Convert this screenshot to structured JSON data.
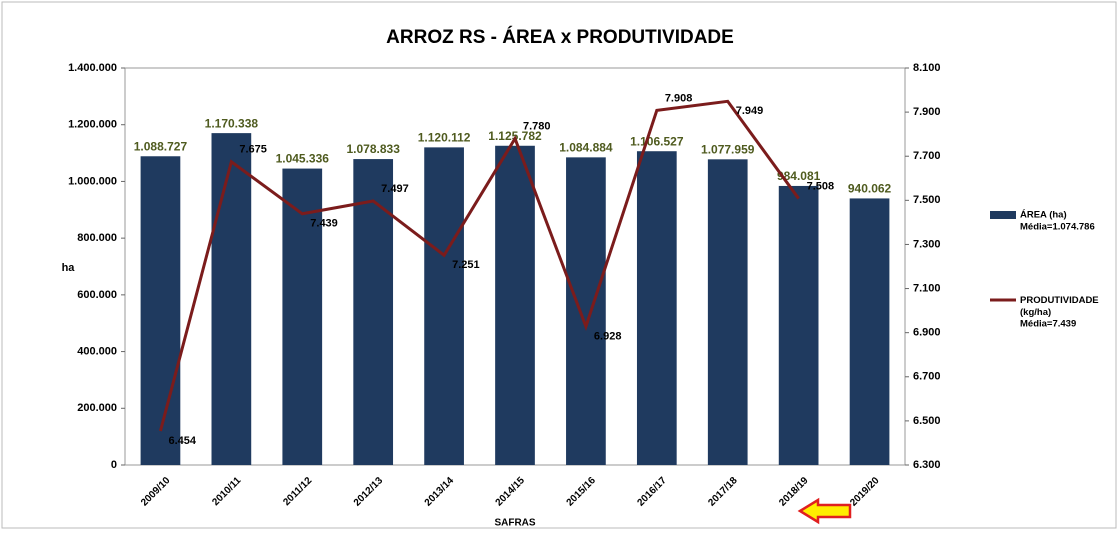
{
  "chart_data": {
    "type": "bar_line",
    "title": "ARROZ RS - ÁREA x PRODUTIVIDADE",
    "x_label": "SAFRAS",
    "y_label": "ha",
    "categories": [
      "2009/10",
      "2010/11",
      "2011/12",
      "2012/13",
      "2013/14",
      "2014/15",
      "2015/16",
      "2016/17",
      "2017/18",
      "2018/19",
      "2019/20"
    ],
    "series": [
      {
        "name": "ÁREA (ha)",
        "legend_note": "Média=1.074.786",
        "color": "#1f3a5f",
        "type": "bar",
        "values": [
          1088727,
          1170338,
          1045336,
          1078833,
          1120112,
          1125782,
          1084884,
          1106527,
          1077959,
          984081,
          940062
        ],
        "value_labels": [
          "1.088.727",
          "1.170.338",
          "1.045.336",
          "1.078.833",
          "1.120.112",
          "1.125.782",
          "1.084.884",
          "1.106.527",
          "1.077.959",
          "984.081",
          "940.062"
        ]
      },
      {
        "name": "PRODUTIVIDADE (kg/ha)",
        "legend_note": "Média=7.439",
        "color": "#7b1c1c",
        "type": "line",
        "axis": "y2",
        "values": [
          6454,
          7675,
          7439,
          7497,
          7251,
          7780,
          6928,
          7908,
          7949,
          7508,
          null
        ],
        "value_labels": [
          "6.454",
          "7.675",
          "7.439",
          "7.497",
          "7.251",
          "7.780",
          "6.928",
          "7.908",
          "7.949",
          "7.508",
          null
        ]
      }
    ],
    "ylim": [
      0,
      1400000
    ],
    "yticks": [
      0,
      {
        "value": 200000,
        "label": "200.000"
      },
      {
        "value": 400000,
        "label": "400.000"
      },
      {
        "value": 600000,
        "label": "600.000"
      },
      {
        "value": 800000,
        "label": "800.000"
      },
      {
        "value": 1000000,
        "label": "1.000.000"
      },
      {
        "value": 1200000,
        "label": "1.200.000"
      },
      {
        "value": 1400000,
        "label": "1.400.000"
      }
    ],
    "y2lim": [
      6300,
      8100
    ],
    "y2ticks": [
      {
        "value": 6300,
        "label": "6.300"
      },
      {
        "value": 6500,
        "label": "6.500"
      },
      {
        "value": 6700,
        "label": "6.700"
      },
      {
        "value": 6900,
        "label": "6.900"
      },
      {
        "value": 7100,
        "label": "7.100"
      },
      {
        "value": 7300,
        "label": "7.300"
      },
      {
        "value": 7500,
        "label": "7.500"
      },
      {
        "value": 7700,
        "label": "7.700"
      },
      {
        "value": 7900,
        "label": "7.900"
      },
      {
        "value": 8100,
        "label": "8.100"
      }
    ],
    "legend_position": "right"
  }
}
